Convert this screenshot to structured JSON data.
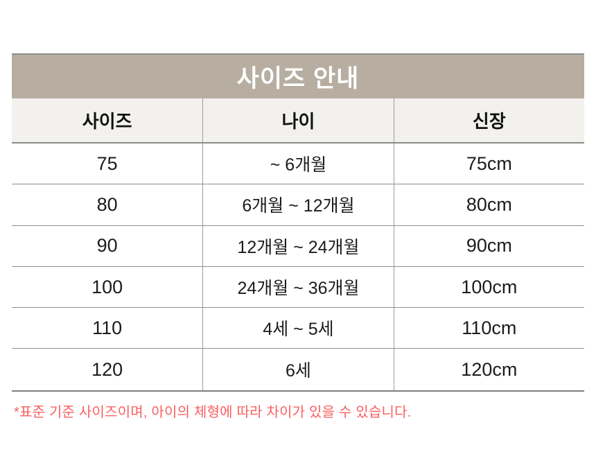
{
  "table": {
    "title": "사이즈 안내",
    "columns": [
      "사이즈",
      "나이",
      "신장"
    ],
    "rows": [
      {
        "size": "75",
        "age": "~ 6개월",
        "height": "75cm"
      },
      {
        "size": "80",
        "age": "6개월 ~ 12개월",
        "height": "80cm"
      },
      {
        "size": "90",
        "age": "12개월 ~ 24개월",
        "height": "90cm"
      },
      {
        "size": "100",
        "age": "24개월 ~ 36개월",
        "height": "100cm"
      },
      {
        "size": "110",
        "age": "4세 ~ 5세",
        "height": "110cm"
      },
      {
        "size": "120",
        "age": "6세",
        "height": "120cm"
      }
    ],
    "footnote": "*표준 기준 사이즈이며, 아이의 체형에 따라 차이가 있을 수 있습니다."
  },
  "colors": {
    "title_bg": "#b7aea1",
    "title_text": "#ffffff",
    "header_bg": "#f2f1ee",
    "grid_line": "#8f8f8f",
    "body_text": "#1c1c1c",
    "footnote_red": "#fa5f5f"
  }
}
